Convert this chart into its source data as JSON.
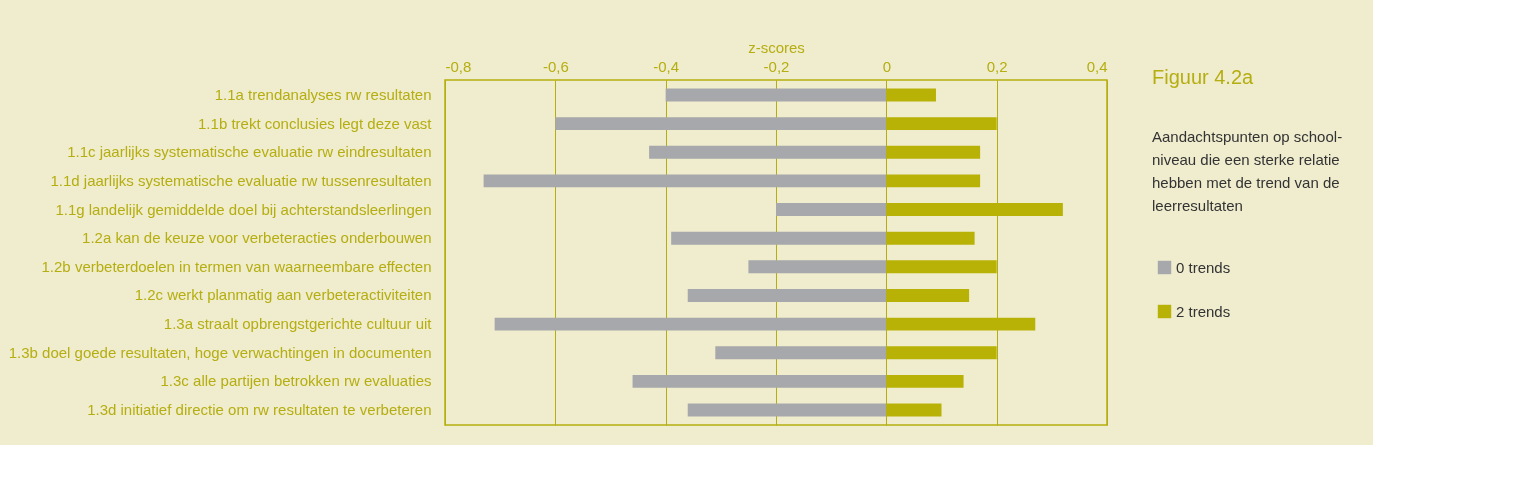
{
  "chart_data": {
    "type": "bar",
    "orientation": "horizontal",
    "title": "Figuur 4.2a",
    "subtitle": [
      "Aandachtspunten op school-",
      "niveau die een sterke relatie",
      "hebben met de trend van de",
      "leerresultaten"
    ],
    "xlabel": "z-scores",
    "categories": [
      "1.1a trendanalyses rw resultaten",
      "1.1b trekt conclusies legt deze vast",
      "1.1c jaarlijks systematische evaluatie rw eindresultaten",
      "1.1d jaarlijks systematische evaluatie rw tussenresultaten",
      "1.1g landelijk gemiddelde doel bij achterstandsleerlingen",
      "1.2a kan de keuze voor verbeteracties onderbouwen",
      "1.2b verbeterdoelen in termen van waarneembare effecten",
      "1.2c werkt planmatig aan verbeteractiviteiten",
      "1.3a straalt  opbrengstgerichte cultuur uit",
      "1.3b doel goede resultaten, hoge verwachtingen in documenten",
      "1.3c alle partijen betrokken rw evaluaties",
      "1.3d initiatief directie om rw resultaten te verbeteren"
    ],
    "series": [
      {
        "name": "0 trends",
        "color": "#a7a8ab",
        "values": [
          -0.4,
          -0.6,
          -0.43,
          -0.73,
          -0.2,
          -0.39,
          -0.25,
          -0.36,
          -0.71,
          -0.31,
          -0.46,
          -0.36
        ]
      },
      {
        "name": "2 trends",
        "color": "#b8b207",
        "values": [
          0.09,
          0.2,
          0.17,
          0.17,
          0.32,
          0.16,
          0.2,
          0.15,
          0.27,
          0.2,
          0.14,
          0.1
        ]
      }
    ],
    "xlim": [
      -0.8,
      0.4
    ],
    "xticks": [
      {
        "value": -0.8,
        "label": "-0,8"
      },
      {
        "value": -0.6,
        "label": "-0,6"
      },
      {
        "value": -0.4,
        "label": "-0,4"
      },
      {
        "value": -0.2,
        "label": "-0,2"
      },
      0,
      {
        "value": 0.2,
        "label": "0,2"
      },
      {
        "value": 0.4,
        "label": "0,4"
      }
    ],
    "stacked": true,
    "grid": "x",
    "legend": "right"
  }
}
